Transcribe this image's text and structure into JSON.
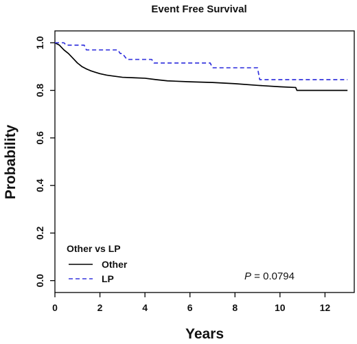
{
  "chart_data": {
    "type": "line",
    "title": "Event Free Survival",
    "xlabel": "Years",
    "ylabel": "Probability",
    "xlim": [
      0,
      13.3
    ],
    "ylim": [
      -0.05,
      1.05
    ],
    "x_ticks": [
      0,
      2,
      4,
      6,
      8,
      10,
      12
    ],
    "y_ticks": [
      0.0,
      0.2,
      0.4,
      0.6,
      0.8,
      1.0
    ],
    "x_tick_labels": [
      "0",
      "2",
      "4",
      "6",
      "8",
      "10",
      "12"
    ],
    "y_tick_labels": [
      "0.0",
      "0.2",
      "0.4",
      "0.6",
      "0.8",
      "1.0"
    ],
    "grid": false,
    "legend": {
      "title": "Other vs LP",
      "placement": "bottom-left",
      "entries": [
        "Other",
        "LP"
      ]
    },
    "annotation": {
      "label": "P",
      "text": " = 0.0794"
    },
    "series": [
      {
        "name": "Other",
        "style": "solid",
        "color": "#000000",
        "step": false,
        "x": [
          0,
          0.2,
          0.4,
          0.6,
          0.8,
          1.0,
          1.2,
          1.4,
          1.6,
          1.8,
          2.0,
          2.3,
          2.6,
          3.0,
          3.5,
          4.0,
          4.5,
          5.0,
          6.0,
          7.0,
          8.0,
          9.0,
          10.0,
          10.7,
          10.75,
          13.0
        ],
        "values": [
          1.0,
          0.99,
          0.97,
          0.955,
          0.935,
          0.915,
          0.9,
          0.89,
          0.882,
          0.876,
          0.87,
          0.864,
          0.86,
          0.855,
          0.853,
          0.851,
          0.845,
          0.84,
          0.836,
          0.833,
          0.828,
          0.821,
          0.815,
          0.812,
          0.8,
          0.8
        ]
      },
      {
        "name": "LP",
        "style": "dashed",
        "color": "#3333dd",
        "step": true,
        "x": [
          0,
          0.4,
          0.5,
          1.3,
          1.4,
          2.8,
          2.9,
          3.0,
          3.2,
          4.3,
          4.4,
          6.9,
          7.0,
          9.0,
          9.1,
          13.0
        ],
        "values": [
          1.0,
          1.0,
          0.99,
          0.99,
          0.97,
          0.97,
          0.955,
          0.955,
          0.93,
          0.93,
          0.915,
          0.915,
          0.895,
          0.895,
          0.845,
          0.845
        ]
      }
    ]
  }
}
